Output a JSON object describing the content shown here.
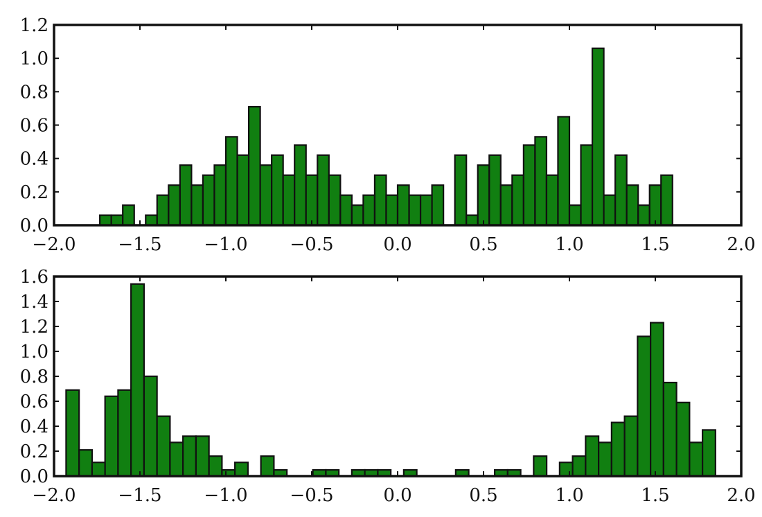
{
  "chart_data": [
    {
      "type": "bar",
      "title": "",
      "xlabel": "",
      "ylabel": "",
      "xlim": [
        -2.0,
        2.0
      ],
      "ylim": [
        0.0,
        1.2
      ],
      "grid": false,
      "bar_color": "#117f11",
      "edge_color": "#111111",
      "bin_width": 0.0667,
      "xticks": [
        -2.0,
        -1.5,
        -1.0,
        -0.5,
        0.0,
        0.5,
        1.0,
        1.5,
        2.0
      ],
      "xtick_labels": [
        "−2.0",
        "−1.5",
        "−1.0",
        "−0.5",
        "0.0",
        "0.5",
        "1.0",
        "1.5",
        "2.0"
      ],
      "yticks": [
        0.0,
        0.2,
        0.4,
        0.6,
        0.8,
        1.0,
        1.2
      ],
      "ytick_labels": [
        "0.0",
        "0.2",
        "0.4",
        "0.6",
        "0.8",
        "1.0",
        "1.2"
      ],
      "bins": [
        {
          "x": -1.7333,
          "y": 0.06
        },
        {
          "x": -1.6667,
          "y": 0.06
        },
        {
          "x": -1.6,
          "y": 0.12
        },
        {
          "x": -1.4667,
          "y": 0.06
        },
        {
          "x": -1.4,
          "y": 0.18
        },
        {
          "x": -1.3333,
          "y": 0.24
        },
        {
          "x": -1.2667,
          "y": 0.36
        },
        {
          "x": -1.2,
          "y": 0.24
        },
        {
          "x": -1.1333,
          "y": 0.3
        },
        {
          "x": -1.0667,
          "y": 0.36
        },
        {
          "x": -1.0,
          "y": 0.53
        },
        {
          "x": -0.9333,
          "y": 0.42
        },
        {
          "x": -0.8667,
          "y": 0.71
        },
        {
          "x": -0.8,
          "y": 0.36
        },
        {
          "x": -0.7333,
          "y": 0.42
        },
        {
          "x": -0.6667,
          "y": 0.3
        },
        {
          "x": -0.6,
          "y": 0.48
        },
        {
          "x": -0.5333,
          "y": 0.3
        },
        {
          "x": -0.4667,
          "y": 0.42
        },
        {
          "x": -0.4,
          "y": 0.3
        },
        {
          "x": -0.3333,
          "y": 0.18
        },
        {
          "x": -0.2667,
          "y": 0.12
        },
        {
          "x": -0.2,
          "y": 0.18
        },
        {
          "x": -0.1333,
          "y": 0.3
        },
        {
          "x": -0.0667,
          "y": 0.18
        },
        {
          "x": 0.0,
          "y": 0.24
        },
        {
          "x": 0.0667,
          "y": 0.18
        },
        {
          "x": 0.1333,
          "y": 0.18
        },
        {
          "x": 0.2,
          "y": 0.24
        },
        {
          "x": 0.3333,
          "y": 0.42
        },
        {
          "x": 0.4,
          "y": 0.06
        },
        {
          "x": 0.4667,
          "y": 0.36
        },
        {
          "x": 0.5333,
          "y": 0.42
        },
        {
          "x": 0.6,
          "y": 0.24
        },
        {
          "x": 0.6667,
          "y": 0.3
        },
        {
          "x": 0.7333,
          "y": 0.48
        },
        {
          "x": 0.8,
          "y": 0.53
        },
        {
          "x": 0.8667,
          "y": 0.3
        },
        {
          "x": 0.9333,
          "y": 0.65
        },
        {
          "x": 1.0,
          "y": 0.12
        },
        {
          "x": 1.0667,
          "y": 0.48
        },
        {
          "x": 1.1333,
          "y": 1.06
        },
        {
          "x": 1.2,
          "y": 0.18
        },
        {
          "x": 1.2667,
          "y": 0.42
        },
        {
          "x": 1.3333,
          "y": 0.24
        },
        {
          "x": 1.4,
          "y": 0.12
        },
        {
          "x": 1.4667,
          "y": 0.24
        },
        {
          "x": 1.5333,
          "y": 0.3
        }
      ]
    },
    {
      "type": "bar",
      "title": "",
      "xlabel": "",
      "ylabel": "",
      "xlim": [
        -2.0,
        2.0
      ],
      "ylim": [
        0.0,
        1.6
      ],
      "grid": false,
      "bar_color": "#117f11",
      "edge_color": "#111111",
      "bin_width": 0.0756,
      "xticks": [
        -2.0,
        -1.5,
        -1.0,
        -0.5,
        0.0,
        0.5,
        1.0,
        1.5,
        2.0
      ],
      "xtick_labels": [
        "−2.0",
        "−1.5",
        "−1.0",
        "−0.5",
        "0.0",
        "0.5",
        "1.0",
        "1.5",
        "2.0"
      ],
      "yticks": [
        0.0,
        0.2,
        0.4,
        0.6,
        0.8,
        1.0,
        1.2,
        1.4,
        1.6
      ],
      "ytick_labels": [
        "0.0",
        "0.2",
        "0.4",
        "0.6",
        "0.8",
        "1.0",
        "1.2",
        "1.4",
        "1.6"
      ],
      "bins": [
        {
          "x": -1.9298,
          "y": 0.69
        },
        {
          "x": -1.8542,
          "y": 0.21
        },
        {
          "x": -1.7786,
          "y": 0.11
        },
        {
          "x": -1.703,
          "y": 0.64
        },
        {
          "x": -1.6274,
          "y": 0.69
        },
        {
          "x": -1.5518,
          "y": 1.54
        },
        {
          "x": -1.4762,
          "y": 0.8
        },
        {
          "x": -1.4006,
          "y": 0.48
        },
        {
          "x": -1.325,
          "y": 0.27
        },
        {
          "x": -1.2494,
          "y": 0.32
        },
        {
          "x": -1.1738,
          "y": 0.32
        },
        {
          "x": -1.0982,
          "y": 0.16
        },
        {
          "x": -1.0226,
          "y": 0.05
        },
        {
          "x": -0.947,
          "y": 0.11
        },
        {
          "x": -0.7958,
          "y": 0.16
        },
        {
          "x": -0.7202,
          "y": 0.05
        },
        {
          "x": -0.4934,
          "y": 0.05
        },
        {
          "x": -0.4178,
          "y": 0.05
        },
        {
          "x": -0.2666,
          "y": 0.05
        },
        {
          "x": -0.191,
          "y": 0.05
        },
        {
          "x": -0.1154,
          "y": 0.05
        },
        {
          "x": 0.0358,
          "y": 0.05
        },
        {
          "x": 0.3382,
          "y": 0.05
        },
        {
          "x": 0.565,
          "y": 0.05
        },
        {
          "x": 0.6406,
          "y": 0.05
        },
        {
          "x": 0.7918,
          "y": 0.16
        },
        {
          "x": 0.943,
          "y": 0.11
        },
        {
          "x": 1.0186,
          "y": 0.16
        },
        {
          "x": 1.0942,
          "y": 0.32
        },
        {
          "x": 1.1698,
          "y": 0.27
        },
        {
          "x": 1.2454,
          "y": 0.43
        },
        {
          "x": 1.321,
          "y": 0.48
        },
        {
          "x": 1.3966,
          "y": 1.12
        },
        {
          "x": 1.4722,
          "y": 1.23
        },
        {
          "x": 1.5478,
          "y": 0.75
        },
        {
          "x": 1.6234,
          "y": 0.59
        },
        {
          "x": 1.699,
          "y": 0.27
        },
        {
          "x": 1.7746,
          "y": 0.37
        }
      ]
    }
  ]
}
